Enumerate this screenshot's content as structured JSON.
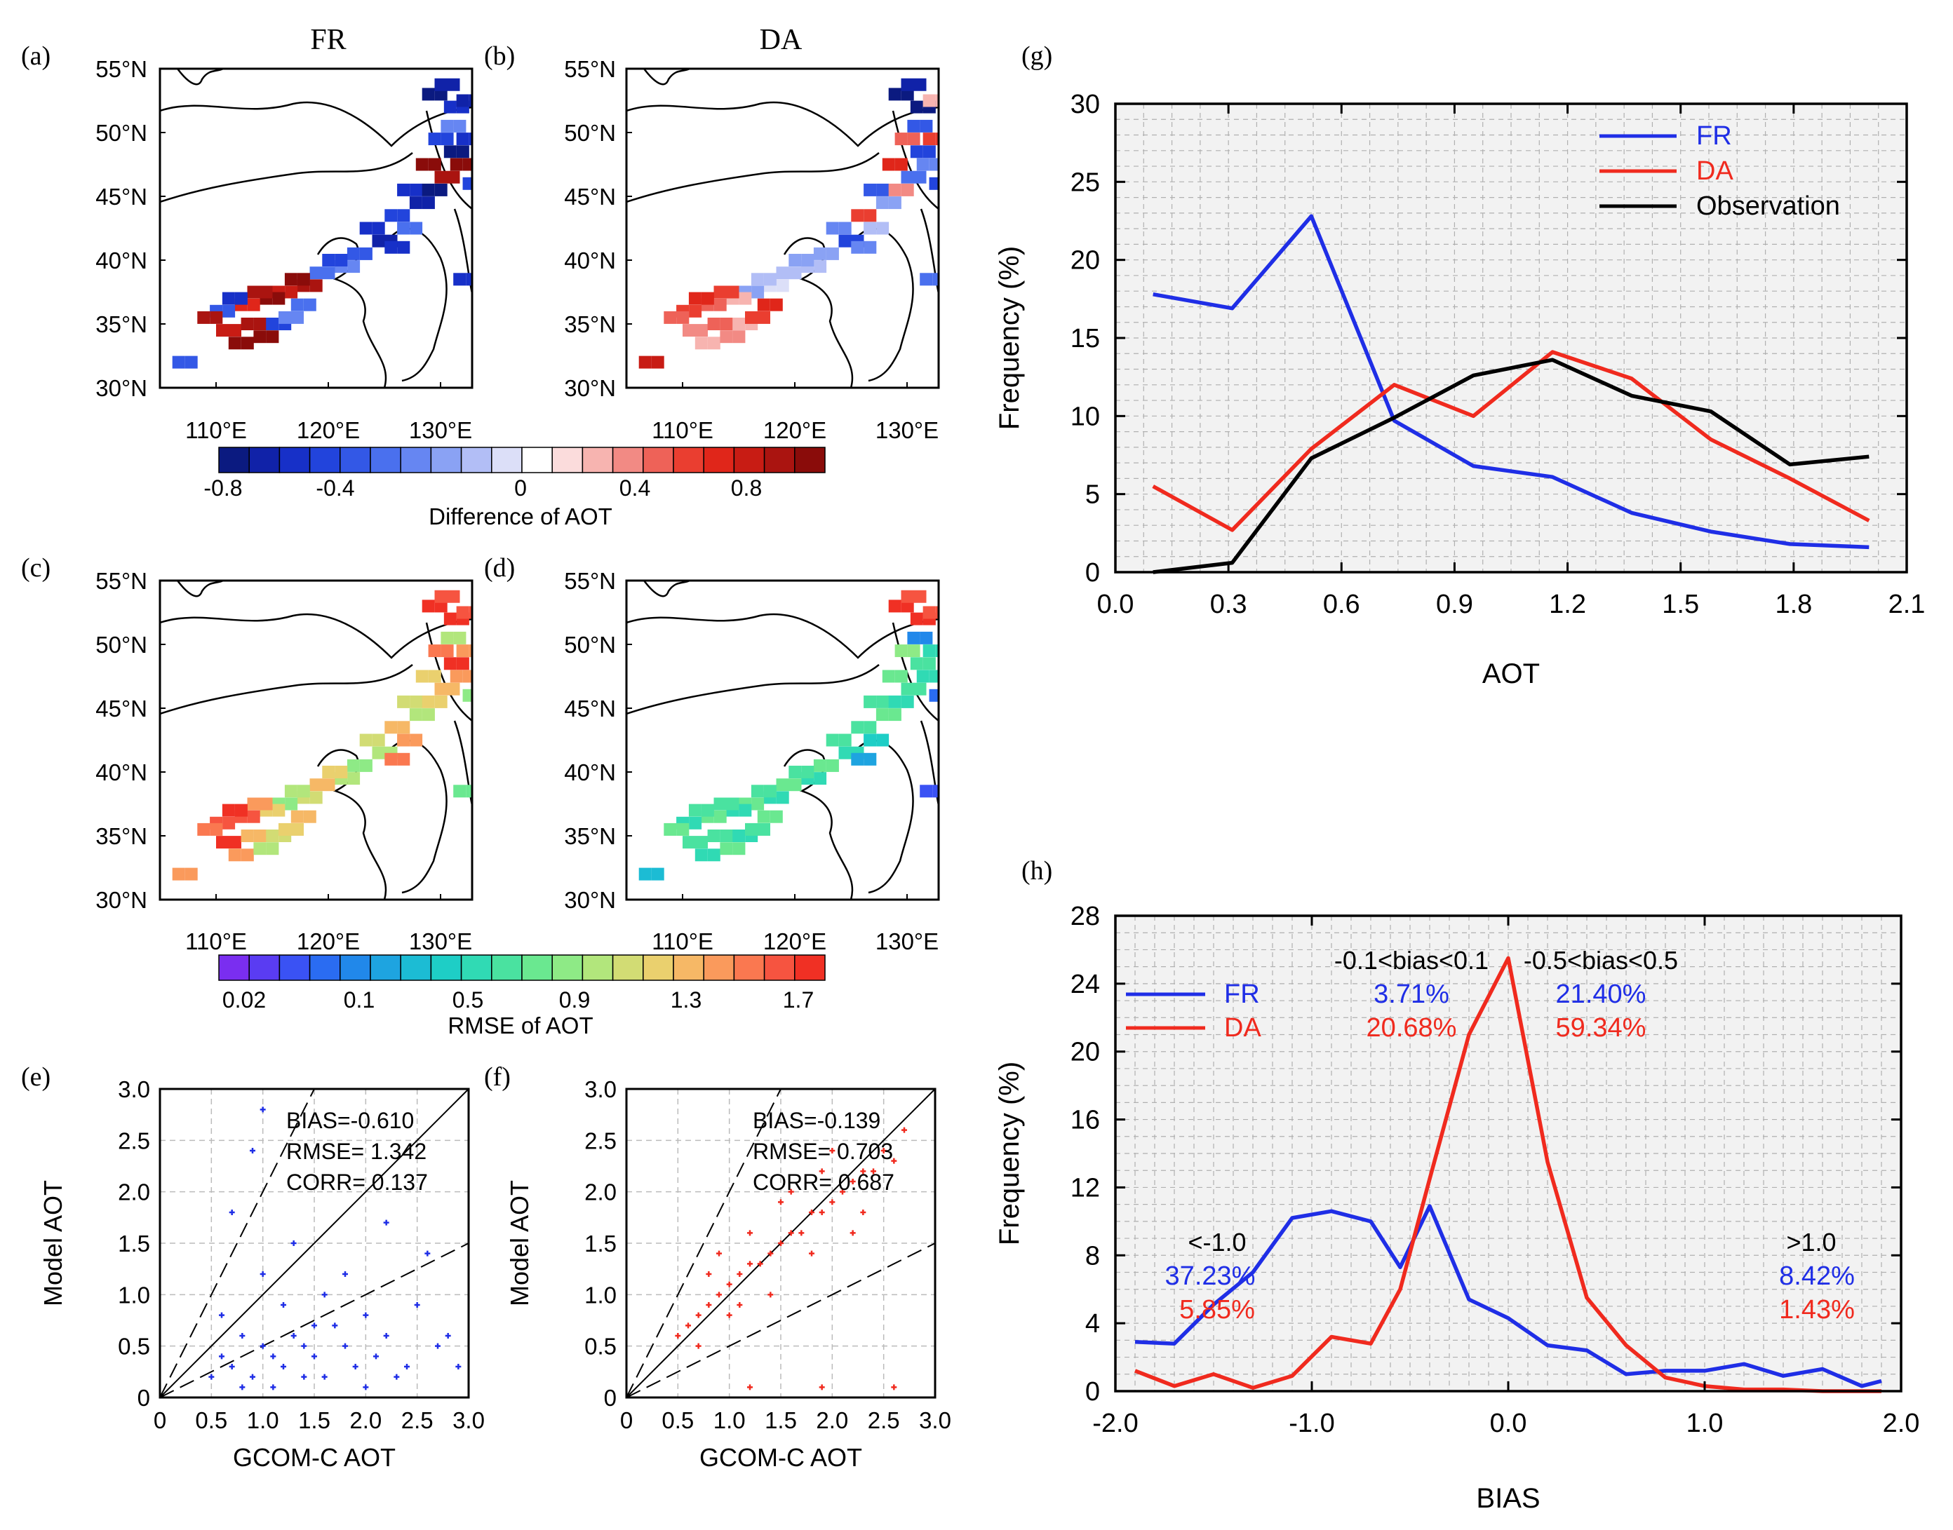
{
  "colors": {
    "fr": "#1f2ee6",
    "da": "#f02a1e",
    "obs": "#000000",
    "grid": "#b0b0b0",
    "plot_bg": "#f2f2f2",
    "diff_scale": [
      "#0b1a80",
      "#1022a8",
      "#1730c8",
      "#2244dc",
      "#3358e6",
      "#4a70ee",
      "#6686f2",
      "#8aa2f4",
      "#b2bef6",
      "#dcdff8",
      "#ffffff",
      "#fbdcdc",
      "#f7b4b0",
      "#f28a84",
      "#ee6258",
      "#ea3e30",
      "#e0261a",
      "#c81c14",
      "#aa1410",
      "#8a0c0a"
    ],
    "rmse_scale": [
      "#7a2ef0",
      "#5a3cf2",
      "#3a52f4",
      "#2a6cf2",
      "#2188ea",
      "#1ea4e0",
      "#1cbcd4",
      "#1ecec6",
      "#30dab4",
      "#4ae2a0",
      "#6ae890",
      "#8eea86",
      "#b2e67c",
      "#d2dc74",
      "#ead06e",
      "#f6b866",
      "#fa9a5c",
      "#fa7850",
      "#f65440",
      "#f03024"
    ]
  },
  "maps": {
    "panels": [
      {
        "tag": "(a)",
        "title": "FR"
      },
      {
        "tag": "(b)",
        "title": "DA"
      },
      {
        "tag": "(c)",
        "title": ""
      },
      {
        "tag": "(d)",
        "title": ""
      }
    ],
    "lat_labels": [
      "55°N",
      "50°N",
      "45°N",
      "40°N",
      "35°N",
      "30°N"
    ],
    "lon_labels": [
      "110°E",
      "120°E",
      "130°E"
    ],
    "diff_colorbar": {
      "ticks": [
        "-0.8",
        "-0.4",
        "0",
        "0.4",
        "0.8"
      ],
      "label": "Difference of AOT"
    },
    "rmse_colorbar": {
      "ticks": [
        "0.02",
        "0.1",
        "0.5",
        "0.9",
        "1.3",
        "1.7"
      ],
      "label": "RMSE of AOT"
    }
  },
  "scatter_panels": [
    {
      "tag": "(e)",
      "stats": [
        "BIAS=-0.610",
        "RMSE= 1.342",
        "CORR= 0.137"
      ]
    },
    {
      "tag": "(f)",
      "stats": [
        "BIAS=-0.139",
        "RMSE= 0.703",
        "CORR= 0.687"
      ]
    }
  ],
  "scatter_axes": {
    "xlabel": "GCOM-C AOT",
    "ylabel": "Model AOT",
    "xticks": [
      "0",
      "0.5",
      "1.0",
      "1.5",
      "2.0",
      "2.5",
      "3.0"
    ],
    "yticks": [
      "0",
      "0.5",
      "1.0",
      "1.5",
      "2.0",
      "2.5",
      "3.0"
    ]
  },
  "panel_g": {
    "tag": "(g)"
  },
  "panel_h": {
    "tag": "(h)",
    "annotations": {
      "center_range": "-0.1<bias<0.1",
      "mid_range": "-0.5<bias<0.5",
      "low_range": "<-1.0",
      "high_range": ">1.0",
      "fr_center": "3.71%",
      "fr_mid": "21.40%",
      "fr_low": "37.23%",
      "fr_high": "8.42%",
      "da_center": "20.68%",
      "da_mid": "59.34%",
      "da_low": "5.85%",
      "da_high": "1.43%"
    }
  },
  "chart_data": [
    {
      "panel": "(g)",
      "type": "line",
      "title": "",
      "xlabel": "AOT",
      "ylabel": "Frequency (%)",
      "xlim": [
        0,
        2.1
      ],
      "ylim": [
        0,
        30
      ],
      "xticks": [
        "0.0",
        "0.3",
        "0.6",
        "0.9",
        "1.2",
        "1.5",
        "1.8",
        "2.1"
      ],
      "yticks": [
        "0",
        "5",
        "10",
        "15",
        "20",
        "25",
        "30"
      ],
      "legend": "top-right",
      "grid": true,
      "x": [
        0.1,
        0.31,
        0.52,
        0.74,
        0.95,
        1.16,
        1.37,
        1.58,
        1.79,
        2.0
      ],
      "series": [
        {
          "name": "FR",
          "values": [
            17.8,
            16.9,
            22.8,
            9.7,
            6.8,
            6.1,
            3.8,
            2.6,
            1.8,
            1.6
          ]
        },
        {
          "name": "DA",
          "values": [
            5.5,
            2.7,
            7.9,
            12.0,
            10.0,
            14.1,
            12.4,
            8.5,
            6.0,
            3.3
          ]
        },
        {
          "name": "Observation",
          "values": [
            0.0,
            0.6,
            7.3,
            9.9,
            12.6,
            13.6,
            11.3,
            10.3,
            6.9,
            7.4
          ]
        }
      ]
    },
    {
      "panel": "(h)",
      "type": "line",
      "title": "",
      "xlabel": "BIAS",
      "ylabel": "Frequency (%)",
      "xlim": [
        -2.0,
        2.0
      ],
      "ylim": [
        0,
        28
      ],
      "xticks": [
        "-2.0",
        "-1.0",
        "0.0",
        "1.0",
        "2.0"
      ],
      "yticks": [
        "0",
        "4",
        "8",
        "12",
        "16",
        "20",
        "24",
        "28"
      ],
      "legend": "top-left",
      "grid": true,
      "x": [
        -1.9,
        -1.7,
        -1.5,
        -1.3,
        -1.1,
        -0.9,
        -0.7,
        -0.55,
        -0.4,
        -0.2,
        0.0,
        0.2,
        0.4,
        0.6,
        0.8,
        1.0,
        1.2,
        1.4,
        1.6,
        1.8,
        1.9
      ],
      "series": [
        {
          "name": "FR",
          "values": [
            2.9,
            2.8,
            5.1,
            7.0,
            10.2,
            10.6,
            10.0,
            7.3,
            10.9,
            5.4,
            4.3,
            2.7,
            2.4,
            1.0,
            1.2,
            1.2,
            1.6,
            0.9,
            1.3,
            0.3,
            0.6
          ]
        },
        {
          "name": "DA",
          "values": [
            1.2,
            0.3,
            1.0,
            0.2,
            0.9,
            3.2,
            2.8,
            6.0,
            12.5,
            21.0,
            25.5,
            13.5,
            5.5,
            2.7,
            0.8,
            0.3,
            0.1,
            0.1,
            0.0,
            0.0,
            0.0
          ]
        }
      ]
    },
    {
      "panel": "(e)",
      "type": "scatter",
      "xlabel": "GCOM-C AOT",
      "ylabel": "Model AOT",
      "xlim": [
        0,
        3.0
      ],
      "ylim": [
        0,
        3.0
      ],
      "series": [
        {
          "name": "FR",
          "points": [
            [
              0.5,
              0.2
            ],
            [
              0.6,
              0.4
            ],
            [
              0.7,
              0.3
            ],
            [
              0.8,
              0.6
            ],
            [
              0.9,
              0.2
            ],
            [
              1.0,
              0.5
            ],
            [
              1.1,
              0.4
            ],
            [
              1.2,
              0.3
            ],
            [
              1.3,
              0.6
            ],
            [
              1.4,
              0.5
            ],
            [
              1.5,
              0.4
            ],
            [
              1.6,
              0.2
            ],
            [
              1.7,
              0.7
            ],
            [
              1.8,
              0.5
            ],
            [
              1.9,
              0.3
            ],
            [
              2.0,
              0.8
            ],
            [
              2.1,
              0.4
            ],
            [
              2.2,
              0.6
            ],
            [
              2.3,
              0.2
            ],
            [
              2.5,
              0.9
            ],
            [
              2.7,
              0.5
            ],
            [
              2.9,
              0.3
            ],
            [
              1.0,
              1.2
            ],
            [
              1.3,
              1.5
            ],
            [
              1.6,
              1.0
            ],
            [
              0.9,
              2.4
            ],
            [
              1.0,
              2.8
            ],
            [
              0.7,
              1.8
            ],
            [
              2.2,
              1.7
            ],
            [
              2.6,
              1.4
            ],
            [
              1.8,
              1.2
            ],
            [
              1.2,
              0.9
            ],
            [
              0.6,
              0.8
            ],
            [
              1.5,
              0.7
            ],
            [
              2.4,
              0.3
            ],
            [
              2.8,
              0.6
            ],
            [
              1.1,
              0.1
            ],
            [
              1.4,
              0.2
            ],
            [
              0.8,
              0.1
            ],
            [
              2.0,
              0.1
            ]
          ]
        }
      ]
    },
    {
      "panel": "(f)",
      "type": "scatter",
      "xlabel": "GCOM-C AOT",
      "ylabel": "Model AOT",
      "xlim": [
        0,
        3.0
      ],
      "ylim": [
        0,
        3.0
      ],
      "series": [
        {
          "name": "DA",
          "points": [
            [
              0.5,
              0.6
            ],
            [
              0.6,
              0.7
            ],
            [
              0.7,
              0.8
            ],
            [
              0.8,
              0.9
            ],
            [
              0.9,
              1.0
            ],
            [
              1.0,
              1.1
            ],
            [
              1.1,
              1.2
            ],
            [
              1.2,
              1.3
            ],
            [
              1.3,
              1.3
            ],
            [
              1.4,
              1.4
            ],
            [
              1.5,
              1.5
            ],
            [
              1.6,
              1.6
            ],
            [
              1.7,
              1.6
            ],
            [
              1.8,
              1.8
            ],
            [
              1.9,
              1.8
            ],
            [
              2.0,
              1.9
            ],
            [
              2.1,
              2.0
            ],
            [
              2.2,
              2.1
            ],
            [
              2.3,
              2.2
            ],
            [
              2.4,
              2.2
            ],
            [
              2.5,
              2.4
            ],
            [
              2.6,
              2.3
            ],
            [
              2.7,
              2.6
            ],
            [
              0.8,
              1.2
            ],
            [
              1.0,
              0.8
            ],
            [
              1.2,
              1.6
            ],
            [
              1.4,
              1.0
            ],
            [
              1.6,
              2.0
            ],
            [
              1.8,
              1.4
            ],
            [
              2.0,
              2.4
            ],
            [
              2.2,
              1.6
            ],
            [
              0.7,
              0.5
            ],
            [
              0.9,
              1.4
            ],
            [
              1.1,
              0.9
            ],
            [
              1.5,
              1.9
            ],
            [
              1.9,
              2.2
            ],
            [
              2.3,
              1.8
            ],
            [
              1.2,
              0.1
            ],
            [
              1.9,
              0.1
            ],
            [
              2.6,
              0.1
            ]
          ]
        }
      ]
    }
  ]
}
